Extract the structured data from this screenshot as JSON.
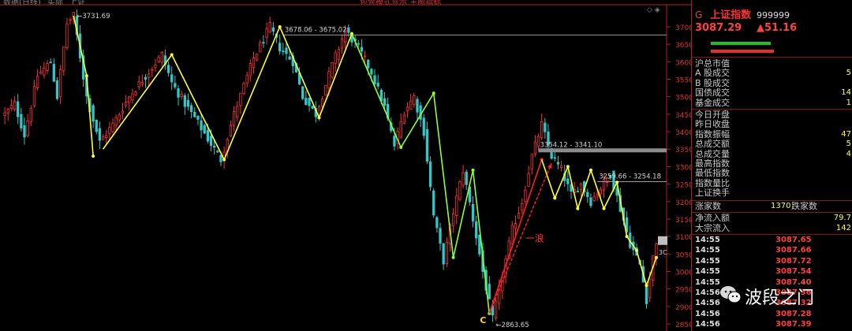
{
  "top_bar": {
    "left_text": "数据(日线)",
    "left_text2": "实际",
    "left_text3": "上证",
    "center_text": "包含模式显示 主图指标"
  },
  "header": {
    "g_label": "G",
    "index_name": "上证指数",
    "code": "999999",
    "price": "3087.29",
    "change": "▲51.16"
  },
  "stats": [
    {
      "label": "沪总市值",
      "value": ""
    },
    {
      "label": "A 股成交",
      "value": "5"
    },
    {
      "label": "B 股成交",
      "value": ""
    },
    {
      "label": "国债成交",
      "value": "14"
    },
    {
      "label": "基金成交",
      "value": "1"
    },
    {
      "label": "今日开盘",
      "value": ""
    },
    {
      "label": "昨日收盘",
      "value": ""
    },
    {
      "label": "指数振幅",
      "value": "47"
    },
    {
      "label": "总成交额",
      "value": "5"
    },
    {
      "label": "总成交量",
      "value": "4"
    },
    {
      "label": "最高指数",
      "value": ""
    },
    {
      "label": "最低指数",
      "value": ""
    },
    {
      "label": "指数量比",
      "value": ""
    },
    {
      "label": "上证换手",
      "value": ""
    }
  ],
  "summary": {
    "up_label": "涨家数",
    "up_value": "1370",
    "down_label": "跌家数",
    "net_in_label": "净流入额",
    "net_in_value": "79.7",
    "block_label": "大宗流入",
    "block_value": "142"
  },
  "ticks": [
    {
      "time": "14:55",
      "price": "3087.65"
    },
    {
      "time": "14:55",
      "price": "3087.66"
    },
    {
      "time": "14:55",
      "price": "3087.72"
    },
    {
      "time": "14:55",
      "price": "3087.54"
    },
    {
      "time": "14:55",
      "price": "3087.40"
    },
    {
      "time": "14:56",
      "price": "3087.36"
    },
    {
      "time": "14:56",
      "price": "3087.32"
    },
    {
      "time": "14:56",
      "price": "3087.28"
    },
    {
      "time": "14:56",
      "price": "3087.39"
    }
  ],
  "watermark": {
    "text": "波段之门"
  },
  "colors": {
    "up": "#ff3030",
    "down": "#30c8c8",
    "wave_yellow": "#ffff30",
    "wave_green": "#90ff30",
    "wave_red": "#ff2020",
    "level_gray": "#9a9a9a"
  },
  "chart_data": {
    "type": "candlestick",
    "y_axis": {
      "min": 2850,
      "max": 3720,
      "ticks": [
        3700,
        3650,
        3600,
        3550,
        3500,
        3450,
        3400,
        3350,
        3300,
        3250,
        3200,
        3150,
        3100,
        3050,
        3000,
        2950,
        2900,
        2850
      ]
    },
    "x_count": 200,
    "current_price_label": "3C",
    "labels": {
      "high_point": "3731.69",
      "resistance_1": "3678.06 - 3675.02",
      "resistance_2": "3354.12 - 3341.10",
      "resistance_3": "3259.66 - 3254.18",
      "low_point": "2863.65",
      "wave_c": "C",
      "wave_one": "一浪"
    },
    "levels": [
      {
        "label_key": "resistance_1",
        "value": 3676.5,
        "from_index": 85,
        "style": "line"
      },
      {
        "label_key": "resistance_2",
        "value": 3347.6,
        "from_index": 163,
        "style": "band"
      },
      {
        "label_key": "resistance_3",
        "value": 3256.9,
        "from_index": 181,
        "style": "line"
      }
    ],
    "pivots": [
      {
        "i": 0,
        "v": 3450
      },
      {
        "i": 3,
        "v": 3480
      },
      {
        "i": 6,
        "v": 3390
      },
      {
        "i": 10,
        "v": 3560
      },
      {
        "i": 14,
        "v": 3600
      },
      {
        "i": 16,
        "v": 3500
      },
      {
        "i": 19,
        "v": 3710
      },
      {
        "i": 21,
        "v": 3731.69
      },
      {
        "i": 25,
        "v": 3500
      },
      {
        "i": 29,
        "v": 3370
      },
      {
        "i": 33,
        "v": 3420
      },
      {
        "i": 38,
        "v": 3500
      },
      {
        "i": 43,
        "v": 3560
      },
      {
        "i": 48,
        "v": 3620
      },
      {
        "i": 51,
        "v": 3540
      },
      {
        "i": 55,
        "v": 3480
      },
      {
        "i": 58,
        "v": 3440
      },
      {
        "i": 62,
        "v": 3380
      },
      {
        "i": 66,
        "v": 3320
      },
      {
        "i": 70,
        "v": 3450
      },
      {
        "i": 76,
        "v": 3610
      },
      {
        "i": 81,
        "v": 3700
      },
      {
        "i": 84,
        "v": 3640
      },
      {
        "i": 88,
        "v": 3600
      },
      {
        "i": 91,
        "v": 3500
      },
      {
        "i": 95,
        "v": 3450
      },
      {
        "i": 100,
        "v": 3590
      },
      {
        "i": 104,
        "v": 3690
      },
      {
        "i": 108,
        "v": 3640
      },
      {
        "i": 112,
        "v": 3570
      },
      {
        "i": 116,
        "v": 3470
      },
      {
        "i": 119,
        "v": 3360
      },
      {
        "i": 122,
        "v": 3460
      },
      {
        "i": 125,
        "v": 3500
      },
      {
        "i": 128,
        "v": 3400
      },
      {
        "i": 131,
        "v": 3160
      },
      {
        "i": 134,
        "v": 3030
      },
      {
        "i": 137,
        "v": 3170
      },
      {
        "i": 140,
        "v": 3290
      },
      {
        "i": 143,
        "v": 3150
      },
      {
        "i": 146,
        "v": 3000
      },
      {
        "i": 149,
        "v": 2863.65
      },
      {
        "i": 152,
        "v": 2990
      },
      {
        "i": 155,
        "v": 3120
      },
      {
        "i": 158,
        "v": 3200
      },
      {
        "i": 161,
        "v": 3330
      },
      {
        "i": 164,
        "v": 3420
      },
      {
        "i": 167,
        "v": 3330
      },
      {
        "i": 170,
        "v": 3290
      },
      {
        "i": 173,
        "v": 3220
      },
      {
        "i": 176,
        "v": 3250
      },
      {
        "i": 179,
        "v": 3200
      },
      {
        "i": 182,
        "v": 3240
      },
      {
        "i": 185,
        "v": 3280
      },
      {
        "i": 188,
        "v": 3180
      },
      {
        "i": 191,
        "v": 3080
      },
      {
        "i": 194,
        "v": 3020
      },
      {
        "i": 196,
        "v": 2920
      },
      {
        "i": 198,
        "v": 3040
      },
      {
        "i": 199,
        "v": 3087.29
      }
    ],
    "wave_segments": [
      {
        "color": "yellow",
        "points": [
          [
            21,
            3731.69
          ],
          [
            25,
            3560
          ],
          [
            27,
            3330
          ]
        ]
      },
      {
        "color": "yellow",
        "points": [
          [
            30,
            3350
          ],
          [
            51,
            3620
          ],
          [
            67,
            3320
          ]
        ]
      },
      {
        "color": "yellow",
        "points": [
          [
            67,
            3320
          ],
          [
            84,
            3700
          ],
          [
            96,
            3440
          ],
          [
            106,
            3680
          ]
        ]
      },
      {
        "color": "green",
        "points": [
          [
            106,
            3680
          ],
          [
            121,
            3355
          ],
          [
            131,
            3510
          ],
          [
            137,
            3040
          ],
          [
            143,
            3290
          ],
          [
            148,
            2880
          ]
        ]
      },
      {
        "color": "red",
        "points": [
          [
            148,
            2880
          ],
          [
            164,
            3320
          ]
        ]
      },
      {
        "color": "yellow",
        "points": [
          [
            164,
            3320
          ],
          [
            168,
            3210
          ],
          [
            172,
            3300
          ],
          [
            175,
            3180
          ],
          [
            179,
            3290
          ],
          [
            183,
            3180
          ],
          [
            187,
            3255
          ],
          [
            190,
            3100
          ],
          [
            193,
            3060
          ],
          [
            196,
            2960
          ],
          [
            199,
            3040
          ]
        ]
      }
    ],
    "red_dashed_arrow": {
      "from": [
        148,
        2880
      ],
      "to": [
        167,
        3310
      ]
    }
  }
}
